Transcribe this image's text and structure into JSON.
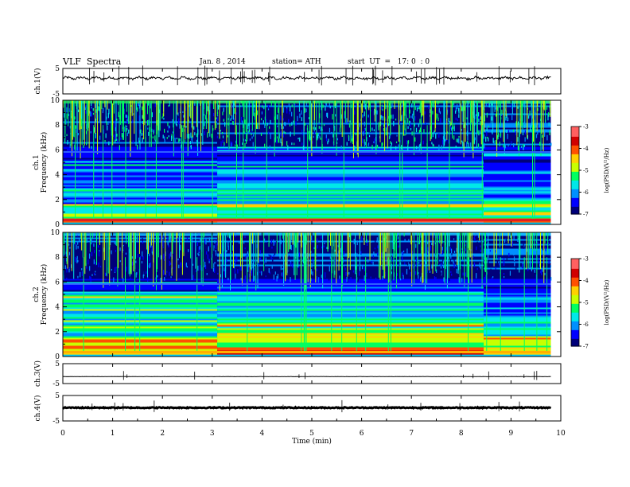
{
  "header": {
    "title": "VLF  Spectra",
    "date": "Jan. 8 , 2014",
    "station": "station= ATH",
    "start": "start  UT  =   17: 0  : 0"
  },
  "chart_data": {
    "type": "heatmap",
    "x_axis": {
      "label": "Time  (min)",
      "range": [
        0,
        10
      ],
      "ticks": [
        0,
        1,
        2,
        3,
        4,
        5,
        6,
        7,
        8,
        9,
        10
      ]
    },
    "panels": [
      {
        "id": "ch1_wave",
        "type": "line",
        "ylabel": "ch.1(V)",
        "ylim": [
          -5,
          5
        ],
        "yticks": [
          "5",
          "-5"
        ],
        "mean_level": 1.2,
        "trace_end_min": 9.8
      },
      {
        "id": "ch1_spec",
        "type": "heatmap",
        "ylabel": "ch.1\nFrequency  (kHz)",
        "ylim": [
          0,
          10
        ],
        "yticks": [
          "0",
          "2",
          "4",
          "6",
          "8",
          "10"
        ],
        "colorbar": {
          "label": "log(PSD/(V²/Hz)",
          "range": [
            -7,
            -3
          ],
          "ticks": [
            "-3",
            "-4",
            "-5",
            "-6",
            "-7"
          ]
        },
        "segment_breaks_min": [
          3.1,
          8.45
        ],
        "data_end_min": 9.8
      },
      {
        "id": "ch2_spec",
        "type": "heatmap",
        "ylabel": "ch.2\nFrequency  (kHz)",
        "ylim": [
          0,
          10
        ],
        "yticks": [
          "0",
          "2",
          "4",
          "6",
          "8",
          "10"
        ],
        "colorbar": {
          "label": "log(PSD/(V²/Hz)",
          "range": [
            -7,
            -3
          ],
          "ticks": [
            "-3",
            "-4",
            "-5",
            "-6",
            "-7"
          ]
        },
        "segment_breaks_min": [
          3.1,
          8.45
        ],
        "data_end_min": 9.8
      },
      {
        "id": "ch3_wave",
        "type": "line",
        "ylabel": "ch.3(V)",
        "ylim": [
          -5,
          5
        ],
        "yticks": [
          "5",
          "-5"
        ],
        "mean_level": -1.5,
        "trace_end_min": 9.8
      },
      {
        "id": "ch4_wave",
        "type": "line",
        "ylabel": "ch.4(V)",
        "ylim": [
          -5,
          5
        ],
        "yticks": [
          "5",
          "-5"
        ],
        "mean_level": 0.2,
        "trace_end_min": 9.8
      }
    ]
  },
  "colors": {
    "colormap": [
      "#00007a",
      "#0000ff",
      "#0090ff",
      "#00e8e8",
      "#00ff60",
      "#c8ff00",
      "#ffd000",
      "#ff5000",
      "#d00000",
      "#ff6060",
      "#ffffff"
    ]
  }
}
